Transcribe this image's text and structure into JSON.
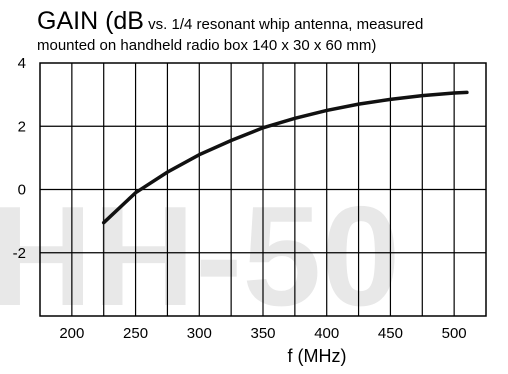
{
  "chart_data": {
    "type": "line",
    "title_main": "GAIN (dB",
    "title_rest": " vs. 1/4 resonant whip antenna, measured",
    "title_line2": "mounted on handheld radio box 140 x 30 x 60 mm)",
    "watermark": "HH-50",
    "xlabel": "f (MHz)",
    "ylabel": "",
    "xlim": [
      175,
      525
    ],
    "ylim": [
      -4,
      4
    ],
    "x_ticks": [
      200,
      250,
      300,
      350,
      400,
      450,
      500
    ],
    "y_ticks": [
      4,
      2,
      0,
      -2
    ],
    "grid": true,
    "series": [
      {
        "x": [
          225,
          250,
          275,
          300,
          325,
          350,
          375,
          400,
          425,
          450,
          475,
          500,
          510
        ],
        "y": [
          -1.05,
          -0.1,
          0.55,
          1.1,
          1.55,
          1.95,
          2.25,
          2.5,
          2.7,
          2.85,
          2.97,
          3.05,
          3.07
        ],
        "color": "#111111"
      }
    ]
  }
}
